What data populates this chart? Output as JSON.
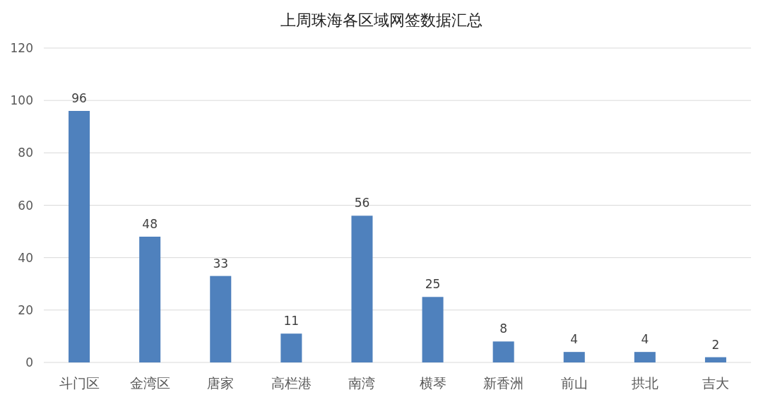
{
  "chart_data": {
    "type": "bar",
    "title": "上周珠海各区域网签数据汇总",
    "categories": [
      "斗门区",
      "金湾区",
      "唐家",
      "高栏港",
      "南湾",
      "横琴",
      "新香洲",
      "前山",
      "拱北",
      "吉大"
    ],
    "values": [
      96,
      48,
      33,
      11,
      56,
      25,
      8,
      4,
      4,
      2
    ],
    "color": "#4f81bd",
    "ylim": [
      0,
      120
    ],
    "yticks": [
      0,
      20,
      40,
      60,
      80,
      100,
      120
    ],
    "grid": "y",
    "data_labels": true
  }
}
